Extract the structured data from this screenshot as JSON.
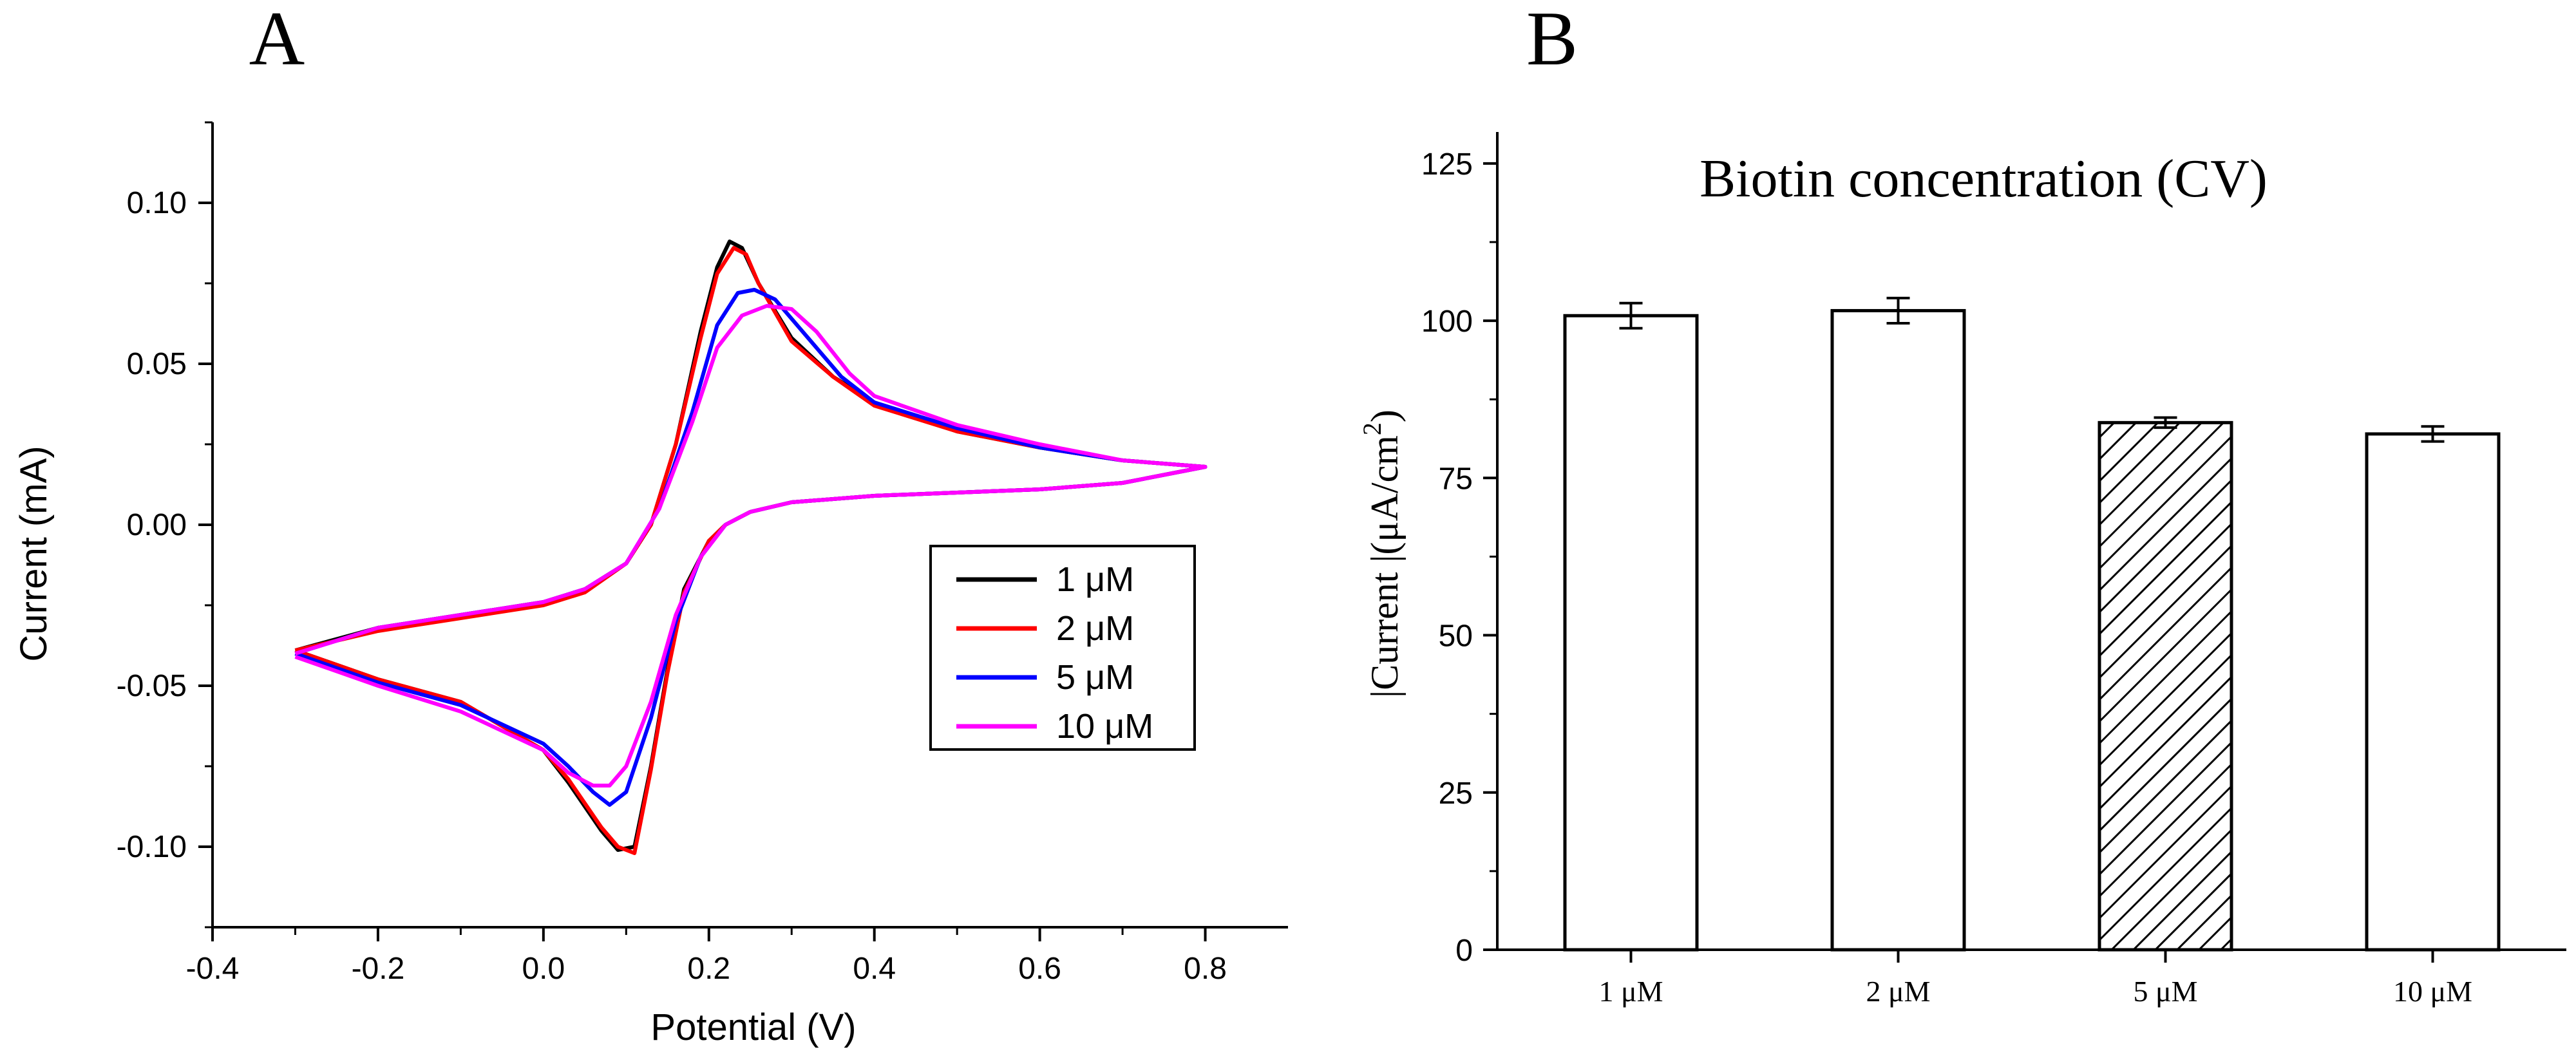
{
  "chart_data": [
    {
      "panel_label": "A",
      "type": "line",
      "title": "",
      "xlabel": "Potential (V)",
      "ylabel": "Current (mA)",
      "xlim": [
        -0.4,
        0.9
      ],
      "ylim": [
        -0.125,
        0.125
      ],
      "xticks": [
        -0.4,
        -0.2,
        0.0,
        0.2,
        0.4,
        0.6,
        0.8
      ],
      "xtick_labels": [
        "-0.4",
        "-0.2",
        "0.0",
        "0.2",
        "0.4",
        "0.6",
        "0.8"
      ],
      "yticks": [
        -0.1,
        -0.05,
        0.0,
        0.05,
        0.1
      ],
      "ytick_labels": [
        "-0.10",
        "-0.05",
        "0.00",
        "0.05",
        "0.10"
      ],
      "legend_position": "lower-right",
      "series": [
        {
          "name": "1 μM",
          "color": "#000000",
          "anodic": {
            "x": [
              -0.3,
              -0.2,
              -0.1,
              0.0,
              0.05,
              0.1,
              0.13,
              0.16,
              0.19,
              0.21,
              0.225,
              0.24,
              0.26,
              0.3,
              0.35,
              0.4,
              0.5,
              0.6,
              0.7,
              0.8
            ],
            "y": [
              -0.039,
              -0.032,
              -0.028,
              -0.024,
              -0.02,
              -0.012,
              0.0,
              0.025,
              0.06,
              0.08,
              0.088,
              0.086,
              0.075,
              0.058,
              0.046,
              0.038,
              0.029,
              0.024,
              0.02,
              0.018
            ]
          },
          "cathodic": {
            "x": [
              0.8,
              0.7,
              0.6,
              0.5,
              0.4,
              0.3,
              0.25,
              0.22,
              0.2,
              0.17,
              0.15,
              0.13,
              0.11,
              0.09,
              0.07,
              0.03,
              0.0,
              -0.1,
              -0.2,
              -0.3
            ],
            "y": [
              0.018,
              0.013,
              0.011,
              0.01,
              0.009,
              0.007,
              0.004,
              0.0,
              -0.005,
              -0.02,
              -0.045,
              -0.075,
              -0.1,
              -0.101,
              -0.095,
              -0.08,
              -0.07,
              -0.055,
              -0.048,
              -0.039
            ]
          }
        },
        {
          "name": "2 μM",
          "color": "#ff0000",
          "anodic": {
            "x": [
              -0.3,
              -0.2,
              -0.1,
              0.0,
              0.05,
              0.1,
              0.13,
              0.16,
              0.19,
              0.21,
              0.23,
              0.245,
              0.26,
              0.3,
              0.35,
              0.4,
              0.5,
              0.6,
              0.7,
              0.8
            ],
            "y": [
              -0.039,
              -0.033,
              -0.029,
              -0.025,
              -0.021,
              -0.012,
              0.0,
              0.025,
              0.058,
              0.078,
              0.086,
              0.084,
              0.075,
              0.057,
              0.046,
              0.037,
              0.029,
              0.024,
              0.02,
              0.018
            ]
          },
          "cathodic": {
            "x": [
              0.8,
              0.7,
              0.6,
              0.5,
              0.4,
              0.3,
              0.25,
              0.22,
              0.2,
              0.17,
              0.15,
              0.13,
              0.11,
              0.09,
              0.07,
              0.03,
              0.0,
              -0.1,
              -0.2,
              -0.3
            ],
            "y": [
              0.018,
              0.013,
              0.011,
              0.01,
              0.009,
              0.007,
              0.004,
              0.0,
              -0.005,
              -0.021,
              -0.046,
              -0.076,
              -0.102,
              -0.1,
              -0.094,
              -0.079,
              -0.07,
              -0.055,
              -0.048,
              -0.039
            ]
          }
        },
        {
          "name": "5 μM",
          "color": "#0000ff",
          "anodic": {
            "x": [
              -0.3,
              -0.2,
              -0.1,
              0.0,
              0.05,
              0.1,
              0.14,
              0.18,
              0.21,
              0.235,
              0.255,
              0.28,
              0.32,
              0.36,
              0.4,
              0.5,
              0.6,
              0.7,
              0.8
            ],
            "y": [
              -0.04,
              -0.032,
              -0.028,
              -0.024,
              -0.02,
              -0.012,
              0.005,
              0.035,
              0.062,
              0.072,
              0.073,
              0.07,
              0.058,
              0.046,
              0.038,
              0.03,
              0.024,
              0.02,
              0.018
            ]
          },
          "cathodic": {
            "x": [
              0.8,
              0.7,
              0.6,
              0.5,
              0.4,
              0.3,
              0.25,
              0.22,
              0.19,
              0.16,
              0.13,
              0.1,
              0.08,
              0.06,
              0.03,
              0.0,
              -0.1,
              -0.2,
              -0.3
            ],
            "y": [
              0.018,
              0.013,
              0.011,
              0.01,
              0.009,
              0.007,
              0.004,
              0.0,
              -0.01,
              -0.03,
              -0.06,
              -0.083,
              -0.087,
              -0.083,
              -0.075,
              -0.068,
              -0.056,
              -0.049,
              -0.04
            ]
          }
        },
        {
          "name": "10 μM",
          "color": "#ff00ff",
          "anodic": {
            "x": [
              -0.3,
              -0.2,
              -0.1,
              0.0,
              0.05,
              0.1,
              0.14,
              0.18,
              0.21,
              0.24,
              0.27,
              0.3,
              0.33,
              0.37,
              0.4,
              0.5,
              0.6,
              0.7,
              0.8
            ],
            "y": [
              -0.04,
              -0.032,
              -0.028,
              -0.024,
              -0.02,
              -0.012,
              0.005,
              0.032,
              0.055,
              0.065,
              0.068,
              0.067,
              0.06,
              0.047,
              0.04,
              0.031,
              0.025,
              0.02,
              0.018
            ]
          },
          "cathodic": {
            "x": [
              0.8,
              0.7,
              0.6,
              0.5,
              0.4,
              0.3,
              0.25,
              0.22,
              0.19,
              0.16,
              0.13,
              0.1,
              0.08,
              0.06,
              0.03,
              0.0,
              -0.1,
              -0.2,
              -0.3
            ],
            "y": [
              0.018,
              0.013,
              0.011,
              0.01,
              0.009,
              0.007,
              0.004,
              0.0,
              -0.01,
              -0.028,
              -0.055,
              -0.075,
              -0.081,
              -0.081,
              -0.077,
              -0.07,
              -0.058,
              -0.05,
              -0.041
            ]
          }
        }
      ]
    },
    {
      "panel_label": "B",
      "type": "bar",
      "title": "Biotin concentration (CV)",
      "xlabel": "",
      "ylabel": "|Current |(μA/cm",
      "ylabel_superscript": "2",
      "ylabel_suffix": ")",
      "ylim": [
        0,
        130
      ],
      "yticks": [
        0,
        25,
        50,
        75,
        100,
        125
      ],
      "ytick_labels": [
        "0",
        "25",
        "50",
        "75",
        "100",
        "125"
      ],
      "categories": [
        "1 μM",
        "2 μM",
        "5 μM",
        "10 μM"
      ],
      "values": [
        100.8,
        101.6,
        83.8,
        82.0
      ],
      "errors": [
        2.0,
        2.0,
        0.8,
        1.2
      ],
      "hatched": [
        false,
        false,
        true,
        false
      ]
    }
  ]
}
